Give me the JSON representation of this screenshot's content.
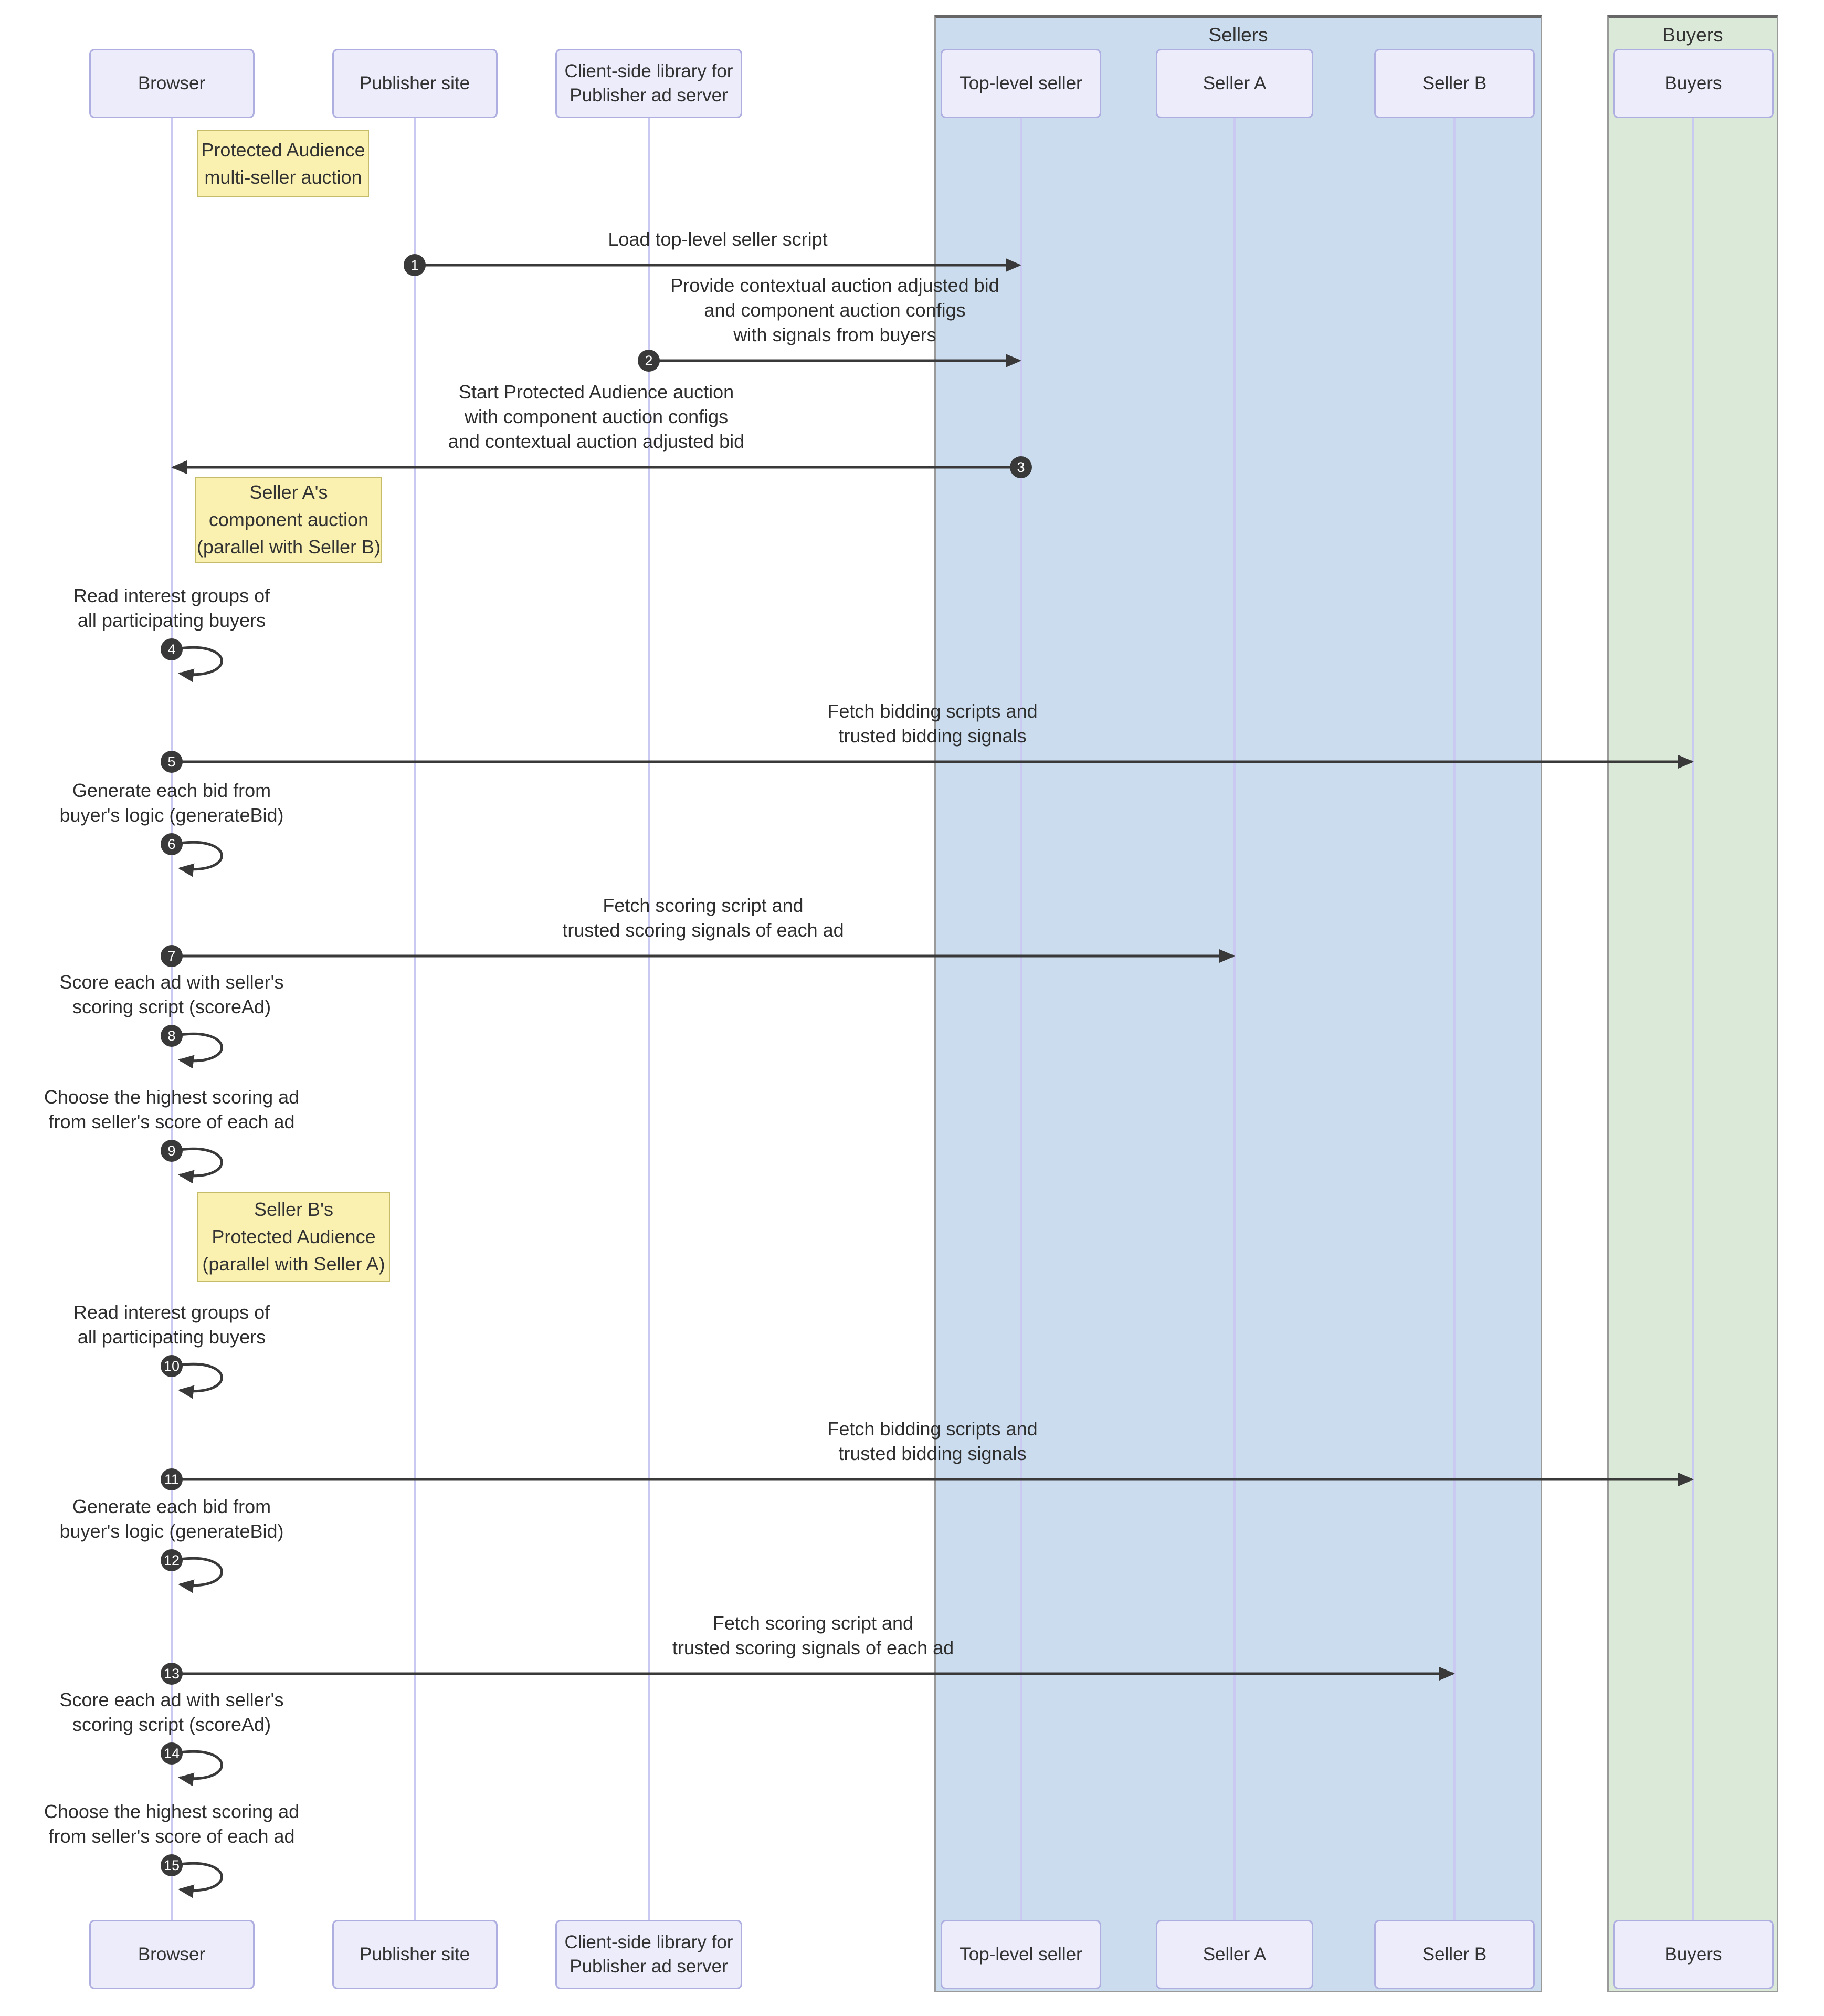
{
  "groups": [
    {
      "id": "sellers",
      "label": "Sellers"
    },
    {
      "id": "buyers",
      "label": "Buyers"
    }
  ],
  "participants": [
    {
      "id": "browser",
      "label": "Browser"
    },
    {
      "id": "publisher",
      "label": "Publisher site"
    },
    {
      "id": "adlib",
      "label": "Client-side library for\nPublisher ad server"
    },
    {
      "id": "topseller",
      "label": "Top-level seller",
      "group": "sellers"
    },
    {
      "id": "sellerA",
      "label": "Seller A",
      "group": "sellers"
    },
    {
      "id": "sellerB",
      "label": "Seller B",
      "group": "sellers"
    },
    {
      "id": "buyersP",
      "label": "Buyers",
      "group": "buyers"
    }
  ],
  "notes": [
    {
      "text": "Protected Audience\nmulti-seller auction"
    },
    {
      "text": "Seller A's\ncomponent auction\n(parallel with Seller B)"
    },
    {
      "text": "Seller B's\nProtected Audience\n(parallel with Seller A)"
    }
  ],
  "messages": [
    {
      "num": 1,
      "from": "publisher",
      "to": "topseller",
      "label": "Load top-level seller script"
    },
    {
      "num": 2,
      "from": "adlib",
      "to": "topseller",
      "label": "Provide contextual auction adjusted bid\nand component auction configs\nwith signals from buyers"
    },
    {
      "num": 3,
      "from": "topseller",
      "to": "browser",
      "label": "Start Protected Audience auction\nwith component auction configs\nand contextual auction adjusted bid"
    },
    {
      "num": 4,
      "self": "browser",
      "label": "Read interest groups of\nall participating buyers"
    },
    {
      "num": 5,
      "from": "browser",
      "to": "buyersP",
      "label": "Fetch bidding scripts and\ntrusted bidding signals"
    },
    {
      "num": 6,
      "self": "browser",
      "label": "Generate each bid from\nbuyer's logic (generateBid)"
    },
    {
      "num": 7,
      "from": "browser",
      "to": "sellerA",
      "label": "Fetch scoring script and\ntrusted scoring signals of each ad"
    },
    {
      "num": 8,
      "self": "browser",
      "label": "Score each ad with seller's\nscoring script (scoreAd)"
    },
    {
      "num": 9,
      "self": "browser",
      "label": "Choose the highest scoring ad\nfrom seller's score of each ad"
    },
    {
      "num": 10,
      "self": "browser",
      "label": "Read interest groups of\nall participating buyers"
    },
    {
      "num": 11,
      "from": "browser",
      "to": "buyersP",
      "label": "Fetch bidding scripts and\ntrusted bidding signals"
    },
    {
      "num": 12,
      "self": "browser",
      "label": "Generate each bid from\nbuyer's logic (generateBid)"
    },
    {
      "num": 13,
      "from": "browser",
      "to": "sellerB",
      "label": "Fetch scoring script and\ntrusted scoring signals of each ad"
    },
    {
      "num": 14,
      "self": "browser",
      "label": "Score each ad with seller's\nscoring script (scoreAd)"
    },
    {
      "num": 15,
      "self": "browser",
      "label": "Choose the highest scoring ad\nfrom seller's score of each ad"
    }
  ],
  "colors": {
    "sellers_fill": "#cadcee",
    "buyers_fill": "#dbead8",
    "note_fill": "#faf1b1",
    "note_border": "#c5bc69",
    "actor_fill": "#ececfb",
    "actor_border": "#aeaee0",
    "lifeline": "#c9c9f2",
    "arrow": "#393939",
    "text": "#333333"
  }
}
